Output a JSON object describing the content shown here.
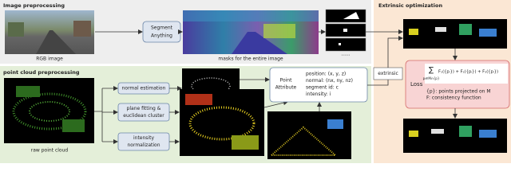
{
  "image_preprocessing": {
    "title": "Image preprocessing",
    "rgb_label": "RGB image",
    "segment_box": [
      "Segment",
      "Anything"
    ],
    "masks_label": "masks for the entire image",
    "ellipsis": "......"
  },
  "point_cloud_preprocessing": {
    "title": "point cloud preprocessing",
    "raw_label": "raw point cloud",
    "steps": [
      [
        "normal estimation"
      ],
      [
        "plane fitting &",
        "euclidean cluster"
      ],
      [
        "intensity",
        "normalization"
      ]
    ],
    "attribute_title": [
      "Point",
      "Attribute"
    ],
    "attributes": [
      "position: (x, y, z)",
      "normal: (nx, ny, nz)",
      "segment id: c",
      "intensity: i"
    ]
  },
  "extrinsic_label": "extrinsic",
  "extrinsic_optimization": {
    "title": "Extrinsic optimization",
    "loss_label": "Loss",
    "formula": {
      "sum": "∑",
      "subscript": "pᵢ∈M∩{p}",
      "terms": "F₁({pᵢ}) + F₂({pᵢ}) + F₃({pᵢ})"
    },
    "notes": [
      "{p}: points projected on M",
      "F: consistency function"
    ]
  }
}
